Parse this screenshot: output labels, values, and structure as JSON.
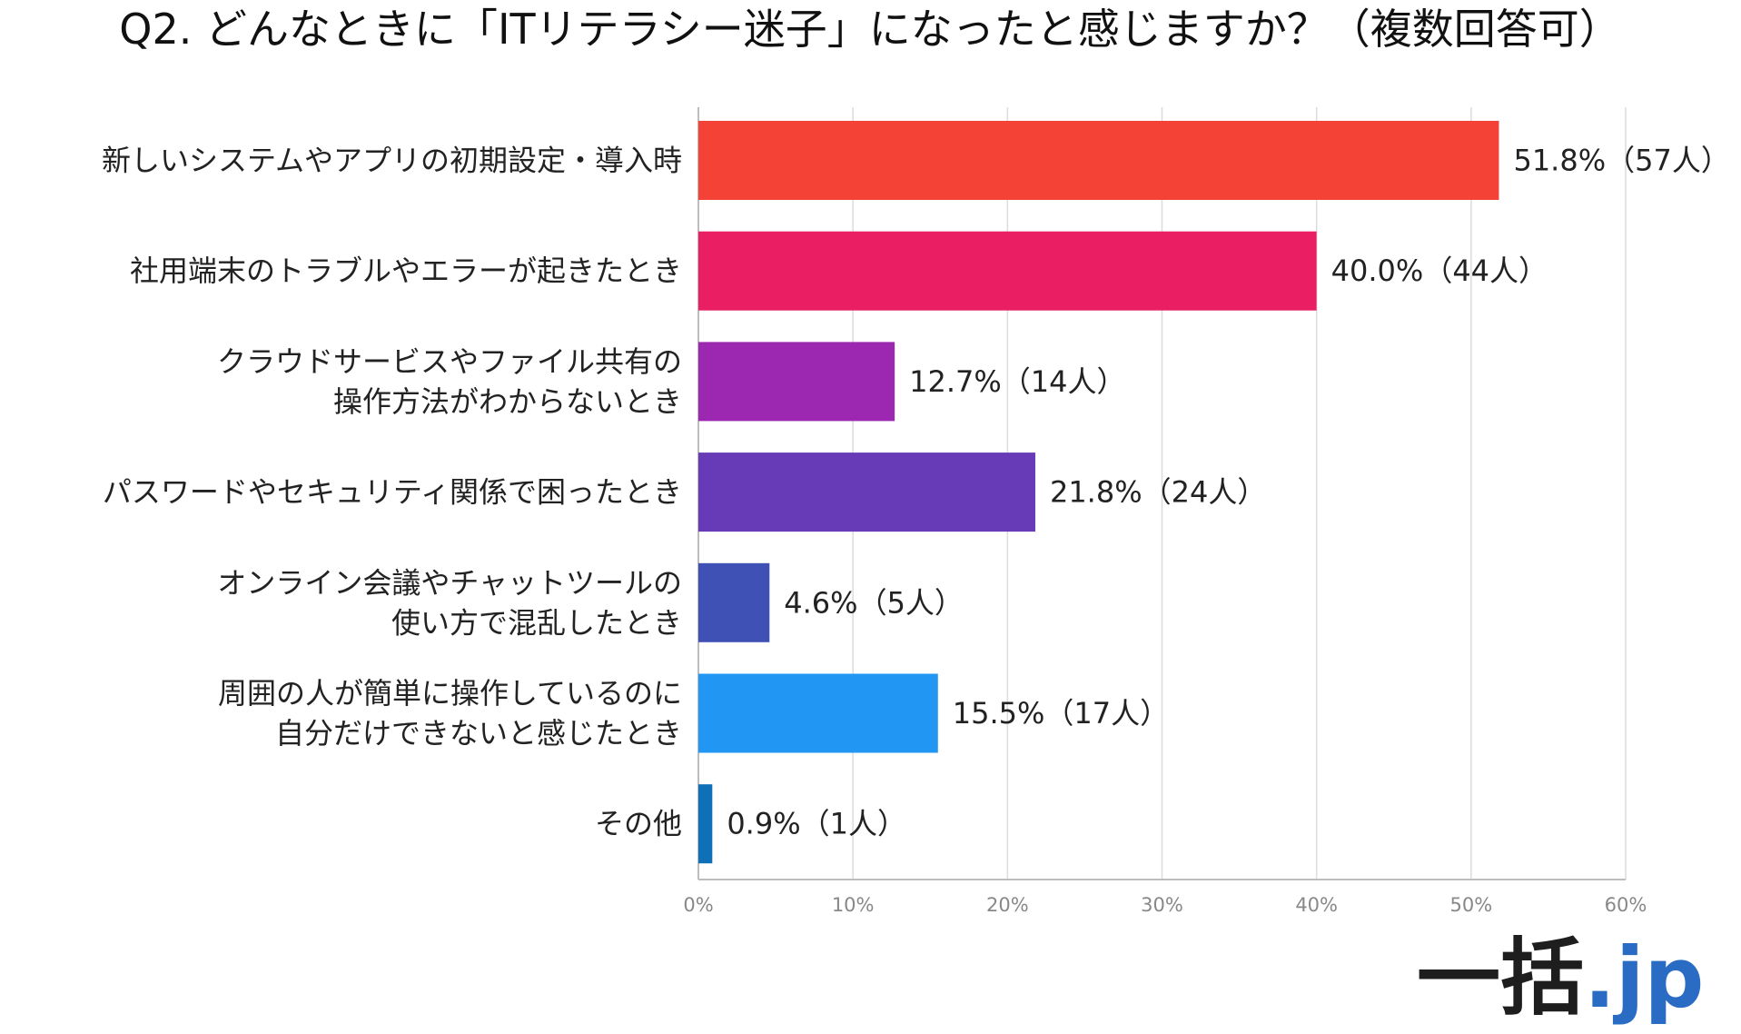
{
  "chart_data": {
    "type": "bar",
    "orientation": "horizontal",
    "title": "Q2. どんなときに「ITリテラシー迷子」になったと感じますか？（複数回答可）",
    "categories": [
      [
        "新しいシステムやアプリの初期設定・導入時"
      ],
      [
        "社用端末のトラブルやエラーが起きたとき"
      ],
      [
        "クラウドサービスやファイル共有の",
        "操作方法がわからないとき"
      ],
      [
        "パスワードやセキュリティ関係で困ったとき"
      ],
      [
        "オンライン会議やチャットツールの",
        "使い方で混乱したとき"
      ],
      [
        "周囲の人が簡単に操作しているのに",
        "自分だけできないと感じたとき"
      ],
      [
        "その他"
      ]
    ],
    "values": [
      51.8,
      40.0,
      12.7,
      21.8,
      4.6,
      15.5,
      0.9
    ],
    "data_labels": [
      "51.8%（57人）",
      "40.0%（44人）",
      "12.7%（14人）",
      "21.8%（24人）",
      "4.6%（5人）",
      "15.5%（17人）",
      "0.9%（1人）"
    ],
    "colors": [
      "#f44336",
      "#e91e63",
      "#9c27b0",
      "#673ab7",
      "#3f51b5",
      "#2196f3",
      "#0f70b7"
    ],
    "x_ticks": [
      0,
      10,
      20,
      30,
      40,
      50,
      60
    ],
    "x_tick_labels": [
      "0%",
      "10%",
      "20%",
      "30%",
      "40%",
      "50%",
      "60%"
    ],
    "xlim": [
      0,
      60
    ],
    "grid": true,
    "legend": "none"
  },
  "logo": {
    "text_main": "一括",
    "text_accent": ".jp",
    "accent_color": "#2a6cc4"
  }
}
